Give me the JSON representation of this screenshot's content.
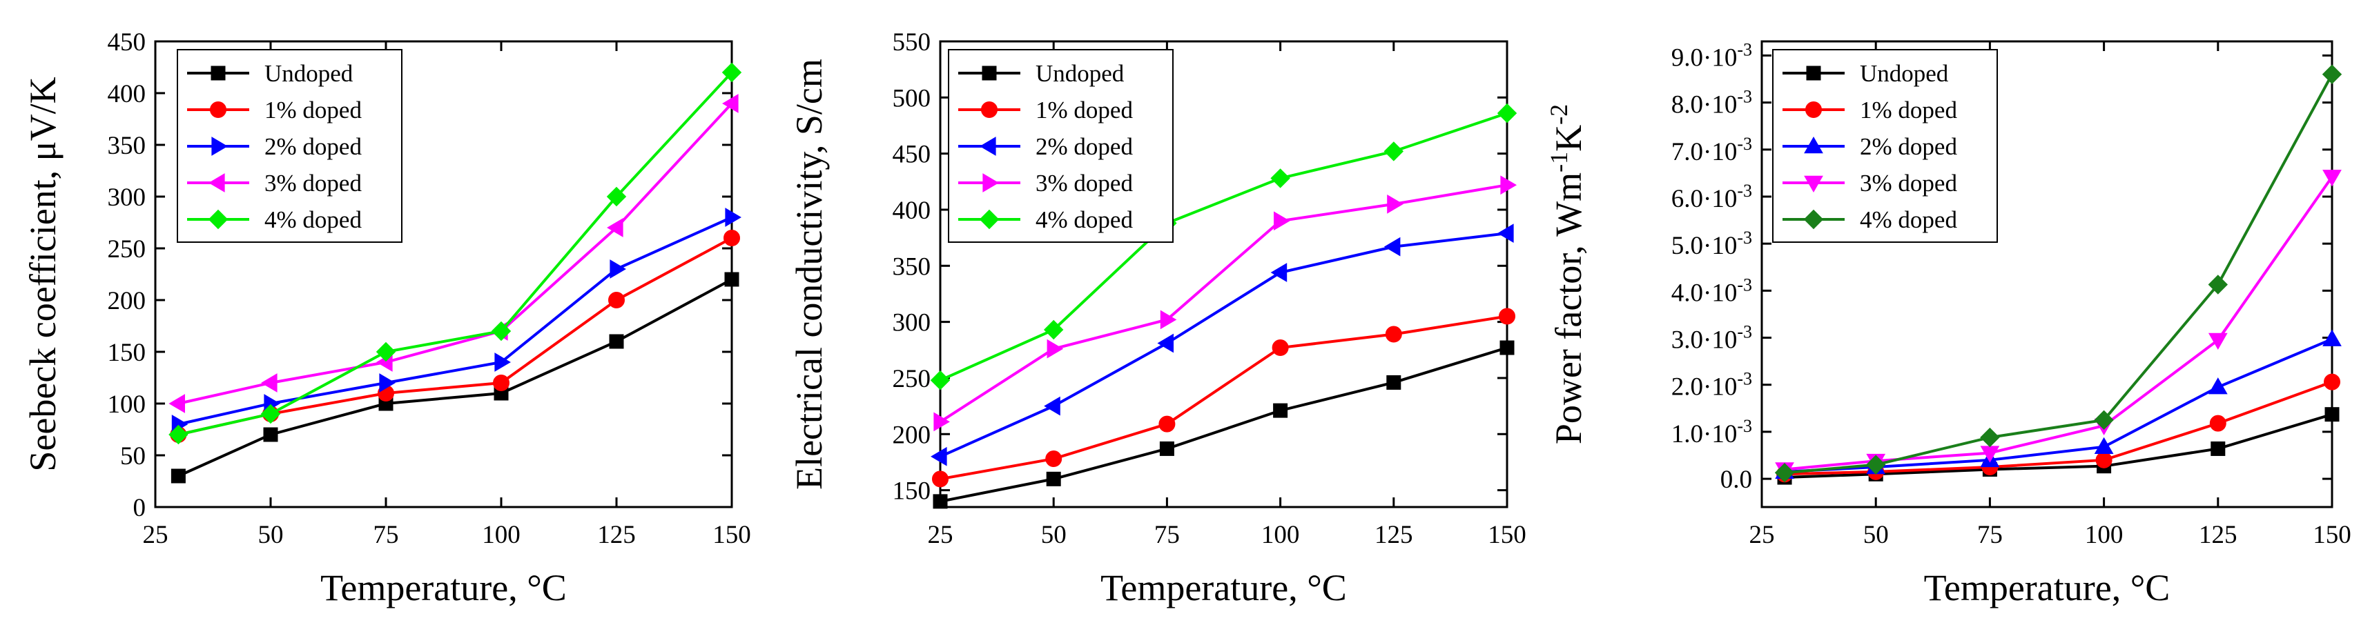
{
  "chart_data": [
    {
      "type": "line",
      "title": "",
      "xlabel": "Temperature, °C",
      "ylabel": "Seebeck coefficient, μV/K",
      "xlim": [
        25,
        150
      ],
      "ylim": [
        0,
        450
      ],
      "xticks": [
        25,
        50,
        75,
        100,
        125,
        150
      ],
      "yticks": [
        0,
        50,
        100,
        150,
        200,
        250,
        300,
        350,
        400,
        450
      ],
      "xtick_labels": [
        "25",
        "50",
        "75",
        "100",
        "125",
        "150"
      ],
      "ytick_labels": [
        "0",
        "50",
        "100",
        "150",
        "200",
        "250",
        "300",
        "350",
        "400",
        "450"
      ],
      "legend_position": "top-left",
      "series": [
        {
          "name": "Undoped",
          "color": "#000000",
          "marker": "square",
          "x": [
            30,
            50,
            75,
            100,
            125,
            150
          ],
          "y": [
            30,
            70,
            100,
            110,
            160,
            220
          ]
        },
        {
          "name": "1% doped",
          "color": "#ff0000",
          "marker": "circle",
          "x": [
            30,
            50,
            75,
            100,
            125,
            150
          ],
          "y": [
            70,
            90,
            110,
            120,
            200,
            260
          ]
        },
        {
          "name": "2% doped",
          "color": "#0000ff",
          "marker": "triangle-right",
          "x": [
            30,
            50,
            75,
            100,
            125,
            150
          ],
          "y": [
            80,
            100,
            120,
            140,
            230,
            280
          ]
        },
        {
          "name": "3% doped",
          "color": "#ff00ff",
          "marker": "triangle-left",
          "x": [
            30,
            50,
            75,
            100,
            125,
            150
          ],
          "y": [
            100,
            120,
            140,
            170,
            270,
            390
          ]
        },
        {
          "name": "4% doped",
          "color": "#00ee00",
          "marker": "diamond",
          "x": [
            30,
            50,
            75,
            100,
            125,
            150
          ],
          "y": [
            70,
            90,
            150,
            170,
            300,
            420
          ]
        }
      ]
    },
    {
      "type": "line",
      "title": "",
      "xlabel": "Temperature, °C",
      "ylabel": "Electrical conductivity, S/cm",
      "xlim": [
        25,
        150
      ],
      "ylim": [
        135,
        550
      ],
      "xticks": [
        25,
        50,
        75,
        100,
        125,
        150
      ],
      "yticks": [
        150,
        200,
        250,
        300,
        350,
        400,
        450,
        500,
        550
      ],
      "xtick_labels": [
        "25",
        "50",
        "75",
        "100",
        "125",
        "150"
      ],
      "ytick_labels": [
        "150",
        "200",
        "250",
        "300",
        "350",
        "400",
        "450",
        "500",
        "550"
      ],
      "legend_position": "top-left",
      "series": [
        {
          "name": "Undoped",
          "color": "#000000",
          "marker": "square",
          "x": [
            25,
            50,
            75,
            100,
            125,
            150
          ],
          "y": [
            140,
            160,
            187,
            221,
            246,
            277
          ]
        },
        {
          "name": "1% doped",
          "color": "#ff0000",
          "marker": "circle",
          "x": [
            25,
            50,
            75,
            100,
            125,
            150
          ],
          "y": [
            160,
            178,
            209,
            277,
            289,
            305
          ]
        },
        {
          "name": "2% doped",
          "color": "#0000ff",
          "marker": "triangle-left",
          "x": [
            25,
            50,
            75,
            100,
            125,
            150
          ],
          "y": [
            180,
            225,
            281,
            344,
            367,
            379
          ]
        },
        {
          "name": "3% doped",
          "color": "#ff00ff",
          "marker": "triangle-right",
          "x": [
            25,
            50,
            75,
            100,
            125,
            150
          ],
          "y": [
            211,
            276,
            302,
            390,
            405,
            422
          ]
        },
        {
          "name": "4% doped",
          "color": "#00ee00",
          "marker": "diamond",
          "x": [
            25,
            50,
            75,
            100,
            125,
            150
          ],
          "y": [
            248,
            293,
            388,
            428,
            452,
            486
          ]
        }
      ]
    },
    {
      "type": "line",
      "title": "",
      "xlabel": "Temperature, °C",
      "ylabel": "Power factor, Wm",
      "ylabel_sup1": "-1",
      "ylabel_mid": "K",
      "ylabel_sup2": "-2",
      "xlim": [
        25,
        150
      ],
      "ylim": [
        -0.0006,
        0.0093
      ],
      "xticks": [
        25,
        50,
        75,
        100,
        125,
        150
      ],
      "yticks": [
        0,
        0.001,
        0.002,
        0.003,
        0.004,
        0.005,
        0.006,
        0.007,
        0.008,
        0.009
      ],
      "xtick_labels": [
        "25",
        "50",
        "75",
        "100",
        "125",
        "150"
      ],
      "ytick_labels": [
        "0.0",
        "1.0·10",
        "2.0·10",
        "3.0·10",
        "4.0·10",
        "5.0·10",
        "6.0·10",
        "7.0·10",
        "8.0·10",
        "9.0·10"
      ],
      "ytick_exponent": "-3",
      "legend_position": "top-left",
      "series": [
        {
          "name": "Undoped",
          "color": "#000000",
          "marker": "square",
          "x": [
            30,
            50,
            75,
            100,
            125,
            150
          ],
          "y": [
            3e-05,
            0.0001,
            0.0002,
            0.00027,
            0.00064,
            0.00137
          ]
        },
        {
          "name": "1% doped",
          "color": "#ff0000",
          "marker": "circle",
          "x": [
            30,
            50,
            75,
            100,
            125,
            150
          ],
          "y": [
            0.0001,
            0.00015,
            0.00025,
            0.0004,
            0.00118,
            0.00206
          ]
        },
        {
          "name": "2% doped",
          "color": "#0000ff",
          "marker": "triangle-up",
          "x": [
            30,
            50,
            75,
            100,
            125,
            150
          ],
          "y": [
            0.00015,
            0.00025,
            0.0004,
            0.00068,
            0.00195,
            0.00297
          ]
        },
        {
          "name": "3% doped",
          "color": "#ff00ff",
          "marker": "triangle-down",
          "x": [
            30,
            50,
            75,
            100,
            125,
            150
          ],
          "y": [
            0.0002,
            0.00038,
            0.00055,
            0.00113,
            0.00295,
            0.00642
          ]
        },
        {
          "name": "4% doped",
          "color": "#1a7f1a",
          "marker": "diamond",
          "x": [
            30,
            50,
            75,
            100,
            125,
            150
          ],
          "y": [
            0.00013,
            0.0003,
            0.00088,
            0.00125,
            0.00413,
            0.0086
          ]
        }
      ]
    }
  ]
}
